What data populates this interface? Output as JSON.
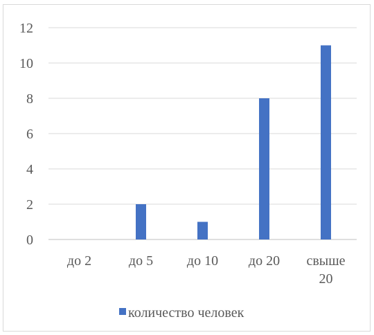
{
  "chart_data": {
    "type": "bar",
    "categories": [
      [
        "до 2"
      ],
      [
        "до 5"
      ],
      [
        "до 10"
      ],
      [
        "до 20"
      ],
      [
        "свыше",
        "20"
      ]
    ],
    "series": [
      {
        "name": "количество человек",
        "values": [
          0,
          2,
          1,
          8,
          11
        ],
        "color": "#4472c4"
      }
    ],
    "y_ticks": [
      "0",
      "2",
      "4",
      "6",
      "8",
      "10",
      "12"
    ],
    "ylim": [
      0,
      12
    ],
    "grid": true,
    "legend_position": "bottom"
  }
}
